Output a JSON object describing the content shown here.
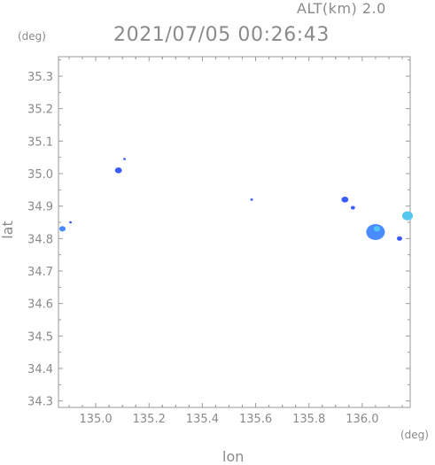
{
  "header": {
    "altitude_label": "ALT(km) 2.0",
    "timestamp": "2021/07/05 00:26:43"
  },
  "axes": {
    "y_unit": "(deg)",
    "x_unit": "(deg)",
    "y_label": "lat",
    "x_label": "lon"
  },
  "chart_data": {
    "type": "heatmap",
    "xlabel": "lon",
    "ylabel": "lat",
    "xlim": [
      134.86,
      136.18
    ],
    "ylim": [
      34.28,
      35.36
    ],
    "x_ticks": [
      "135.0",
      "135.2",
      "135.4",
      "135.6",
      "135.8",
      "136.0"
    ],
    "y_ticks": [
      "34.3",
      "34.4",
      "34.5",
      "34.6",
      "34.7",
      "34.8",
      "34.9",
      "35.0",
      "35.1",
      "35.2",
      "35.3"
    ],
    "grid": false,
    "echo_colors": {
      "weak": "#3a5cff",
      "moderate": "#4a8cff",
      "strong": "#55c8f0"
    },
    "echo_cells": [
      {
        "lon": 134.875,
        "lat": 34.83,
        "r": 0.012,
        "level": "moderate"
      },
      {
        "lon": 134.905,
        "lat": 34.85,
        "r": 0.004,
        "level": "weak"
      },
      {
        "lon": 135.085,
        "lat": 35.01,
        "r": 0.013,
        "level": "weak"
      },
      {
        "lon": 135.108,
        "lat": 35.045,
        "r": 0.004,
        "level": "weak"
      },
      {
        "lon": 135.585,
        "lat": 34.92,
        "r": 0.003,
        "level": "weak"
      },
      {
        "lon": 135.935,
        "lat": 34.92,
        "r": 0.013,
        "level": "weak"
      },
      {
        "lon": 135.965,
        "lat": 34.895,
        "r": 0.008,
        "level": "weak"
      },
      {
        "lon": 136.05,
        "lat": 34.82,
        "r": 0.035,
        "level": "moderate"
      },
      {
        "lon": 136.055,
        "lat": 34.83,
        "r": 0.012,
        "level": "strong"
      },
      {
        "lon": 136.14,
        "lat": 34.8,
        "r": 0.01,
        "level": "weak"
      },
      {
        "lon": 136.17,
        "lat": 34.87,
        "r": 0.02,
        "level": "strong"
      }
    ]
  }
}
